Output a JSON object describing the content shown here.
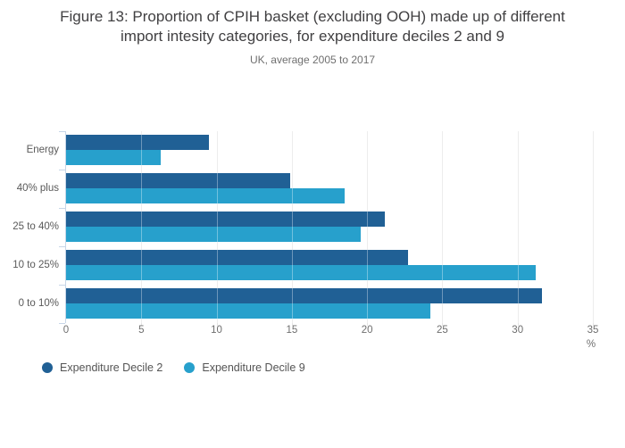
{
  "header": {
    "title_line1": "Figure 13: Proportion of CPIH basket (excluding OOH) made up of different",
    "title_line2": "import intesity categories, for expenditure deciles 2 and 9",
    "subtitle": "UK, average 2005 to 2017"
  },
  "chart_data": {
    "type": "bar",
    "orientation": "horizontal",
    "title": "Figure 13: Proportion of CPIH basket (excluding OOH) made up of different import intesity categories, for expenditure deciles 2 and 9",
    "subtitle": "UK, average 2005 to 2017",
    "categories": [
      "Energy",
      "40% plus",
      "25 to 40%",
      "10 to 25%",
      "0 to 10%"
    ],
    "series": [
      {
        "name": "Expenditure Decile 2",
        "color": "#206095",
        "values": [
          9.5,
          14.9,
          21.2,
          22.7,
          31.6
        ]
      },
      {
        "name": "Expenditure Decile 9",
        "color": "#27a0cc",
        "values": [
          6.3,
          18.5,
          19.6,
          31.2,
          24.2
        ]
      }
    ],
    "x_ticks": [
      0,
      5,
      10,
      15,
      20,
      25,
      30,
      35
    ],
    "xlim": [
      0,
      35
    ],
    "xlabel": "%",
    "grid": true,
    "legend_position": "bottom-left",
    "colors": {
      "series_dark": "#206095",
      "series_light": "#27a0cc",
      "gridline": "#e4e4e4",
      "axis_line": "#c7d6e8",
      "title_text": "#414042",
      "label_text": "#6e6e6e"
    }
  }
}
